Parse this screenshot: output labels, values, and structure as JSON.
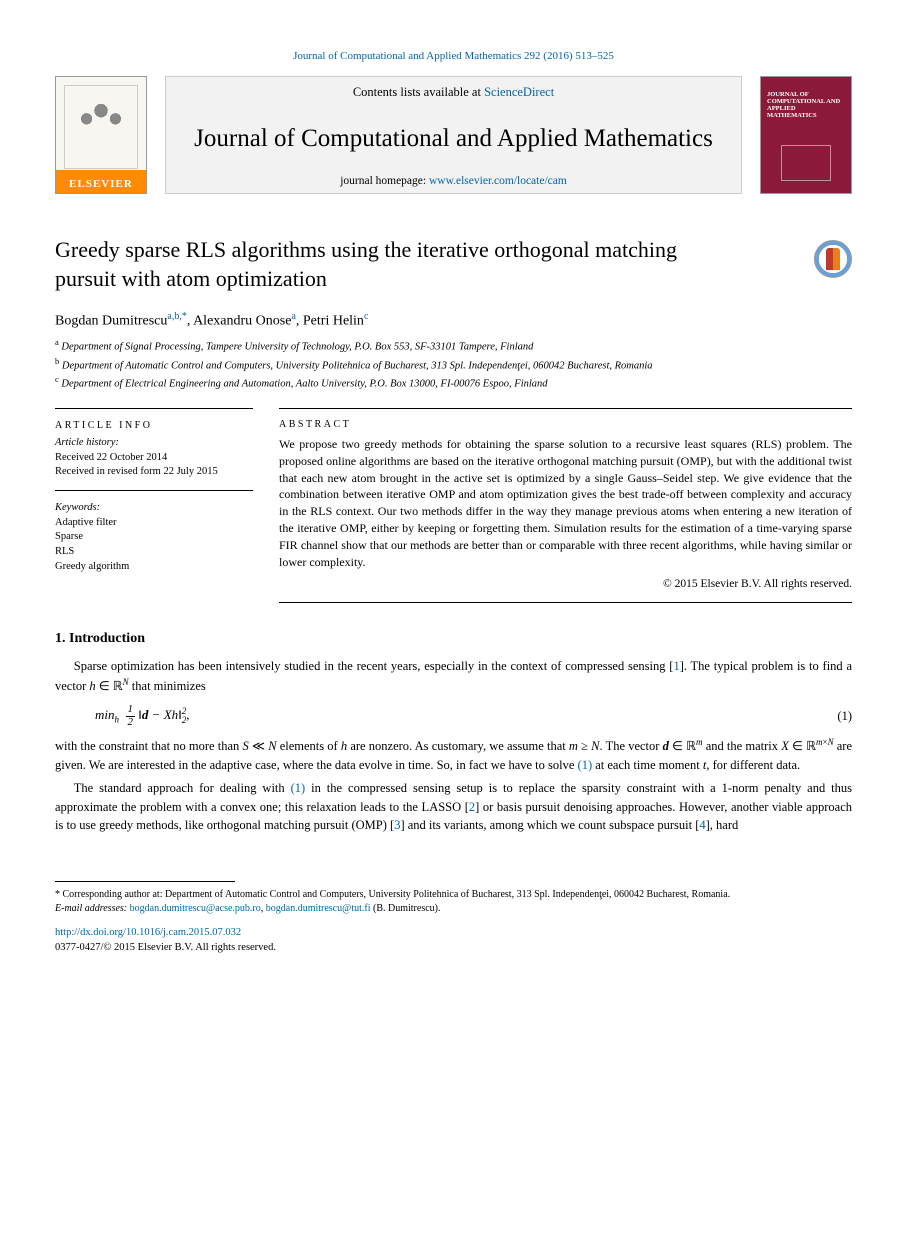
{
  "header": {
    "citation": "Journal of Computational and Applied Mathematics 292 (2016) 513–525",
    "contents_prefix": "Contents lists available at ",
    "contents_link": "ScienceDirect",
    "journal_title": "Journal of Computational and Applied Mathematics",
    "homepage_prefix": "journal homepage: ",
    "homepage_url": "www.elsevier.com/locate/cam",
    "elsevier_label": "ELSEVIER",
    "cover_text": "JOURNAL OF COMPUTATIONAL AND APPLIED MATHEMATICS"
  },
  "article": {
    "title": "Greedy sparse RLS algorithms using the iterative orthogonal matching pursuit with atom optimization",
    "authors": [
      {
        "name": "Bogdan Dumitrescu",
        "sup": "a,b,*"
      },
      {
        "name": "Alexandru Onose",
        "sup": "a"
      },
      {
        "name": "Petri Helin",
        "sup": "c"
      }
    ],
    "affiliations": [
      {
        "sup": "a",
        "text": "Department of Signal Processing, Tampere University of Technology, P.O. Box 553, SF-33101 Tampere, Finland"
      },
      {
        "sup": "b",
        "text": "Department of Automatic Control and Computers, University Politehnica of Bucharest, 313 Spl. Independenţei, 060042 Bucharest, Romania"
      },
      {
        "sup": "c",
        "text": "Department of Electrical Engineering and Automation, Aalto University, P.O. Box 13000, FI-00076 Espoo, Finland"
      }
    ]
  },
  "meta": {
    "hist_heading": "ARTICLE INFO",
    "hist_label": "Article history:",
    "received": "Received 22 October 2014",
    "revised": "Received in revised form 22 July 2015",
    "kw_label": "Keywords:",
    "keywords": [
      "Adaptive filter",
      "Sparse",
      "RLS",
      "Greedy algorithm"
    ]
  },
  "abstract": {
    "heading": "ABSTRACT",
    "body": "We propose two greedy methods for obtaining the sparse solution to a recursive least squares (RLS) problem. The proposed online algorithms are based on the iterative orthogonal matching pursuit (OMP), but with the additional twist that each new atom brought in the active set is optimized by a single Gauss–Seidel step. We give evidence that the combination between iterative OMP and atom optimization gives the best trade-off between complexity and accuracy in the RLS context. Our two methods differ in the way they manage previous atoms when entering a new iteration of the iterative OMP, either by keeping or forgetting them. Simulation results for the estimation of a time-varying sparse FIR channel show that our methods are better than or comparable with three recent algorithms, while having similar or lower complexity.",
    "copyright": "© 2015 Elsevier B.V. All rights reserved."
  },
  "section1": {
    "heading": "1. Introduction",
    "p1_a": "Sparse optimization has been intensively studied in the recent years, especially in the context of compressed sensing ",
    "p1_cite": "[1]",
    "p1_b": ". The typical problem is to find a vector ",
    "p1_c": " that minimizes",
    "eq1_label": "(1)",
    "p2_a": "with the constraint that no more than ",
    "p2_b": " elements of ",
    "p2_c": " are nonzero. As customary, we assume that ",
    "p2_d": ". The vector ",
    "p2_e": " and the matrix ",
    "p2_f": " are given. We are interested in the adaptive case, where the data evolve in time. So, in fact we have to solve ",
    "p2_eqref": "(1)",
    "p2_g": " at each time moment ",
    "p2_h": ", for different data.",
    "p3_a": "The standard approach for dealing with ",
    "p3_eqref": "(1)",
    "p3_b": " in the compressed sensing setup is to replace the sparsity constraint with a 1-norm penalty and thus approximate the problem with a convex one; this relaxation leads to the LASSO ",
    "p3_cite1": "[2]",
    "p3_c": " or basis pursuit denoising approaches. However, another viable approach is to use greedy methods, like orthogonal matching pursuit (OMP) ",
    "p3_cite2": "[3]",
    "p3_d": " and its variants, among which we count subspace pursuit ",
    "p3_cite3": "[4]",
    "p3_e": ", hard"
  },
  "footnotes": {
    "corr": "* Corresponding author at: Department of Automatic Control and Computers, University Politehnica of Bucharest, 313 Spl. Independenţei, 060042 Bucharest, Romania.",
    "email_label": "E-mail addresses:",
    "email1": "bogdan.dumitrescu@acse.pub.ro",
    "email_alt": "bogdan.dumitrescu@tut.fi",
    "email_name": " (B. Dumitrescu).",
    "doi_url": "http://dx.doi.org/10.1016/j.cam.2015.07.032",
    "copyright": "0377-0427/© 2015 Elsevier B.V. All rights reserved."
  },
  "colors": {
    "link": "#0066aa",
    "cover_bg": "#8b1a3a",
    "elsevier_orange": "#ff8c00",
    "banner_bg": "#f2f2f2"
  }
}
